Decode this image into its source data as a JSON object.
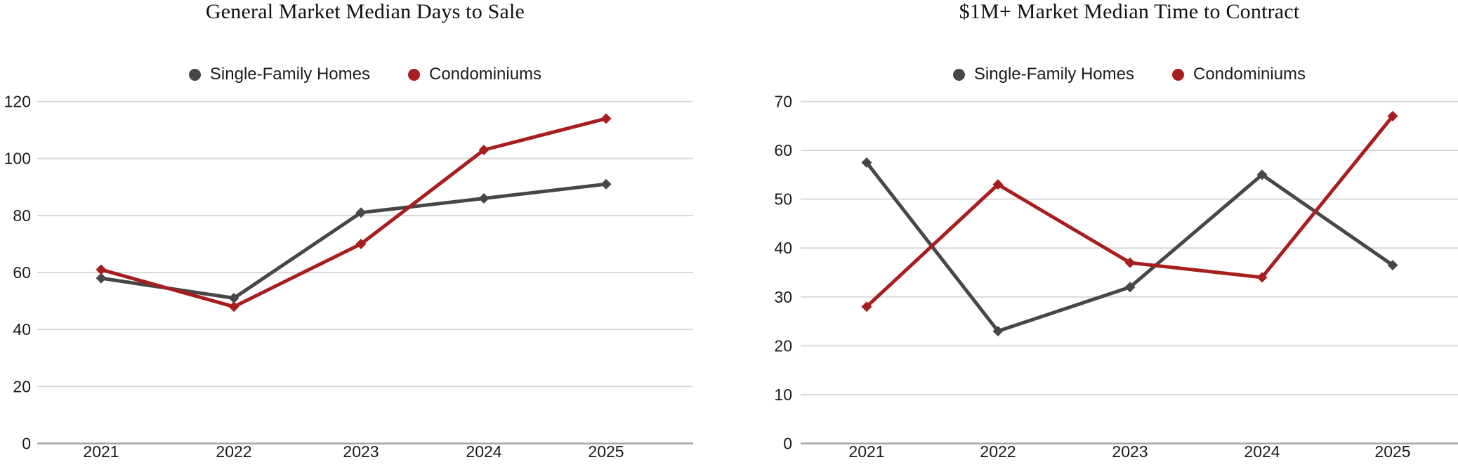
{
  "chart_data": [
    {
      "type": "line",
      "title": "General Market Median Days to Sale",
      "categories": [
        "2021",
        "2022",
        "2023",
        "2024",
        "2025"
      ],
      "series": [
        {
          "name": "Single-Family Homes",
          "color": "#474747",
          "values": [
            58,
            51,
            81,
            86,
            91
          ]
        },
        {
          "name": "Condominiums",
          "color": "#A81E1E",
          "values": [
            61,
            48,
            70,
            103,
            114
          ]
        }
      ],
      "xlabel": "",
      "ylabel": "",
      "ylim": [
        0,
        120
      ],
      "yticks": [
        0,
        20,
        40,
        60,
        80,
        100,
        120
      ],
      "grid": "horizontal",
      "grid_color": "#D9D9D9",
      "axis_color": "#A6A6A6",
      "legend_position": "top",
      "marker": "diamond"
    },
    {
      "type": "line",
      "title": "$1M+ Market Median Time to Contract",
      "categories": [
        "2021",
        "2022",
        "2023",
        "2024",
        "2025"
      ],
      "series": [
        {
          "name": "Single-Family Homes",
          "color": "#474747",
          "values": [
            57.5,
            23,
            32,
            55,
            36.5
          ]
        },
        {
          "name": "Condominiums",
          "color": "#A81E1E",
          "values": [
            28,
            53,
            37,
            34,
            67
          ]
        }
      ],
      "xlabel": "",
      "ylabel": "",
      "ylim": [
        0,
        70
      ],
      "yticks": [
        0,
        10,
        20,
        30,
        40,
        50,
        60,
        70
      ],
      "grid": "horizontal",
      "grid_color": "#D9D9D9",
      "axis_color": "#A6A6A6",
      "legend_position": "top",
      "marker": "diamond"
    }
  ]
}
